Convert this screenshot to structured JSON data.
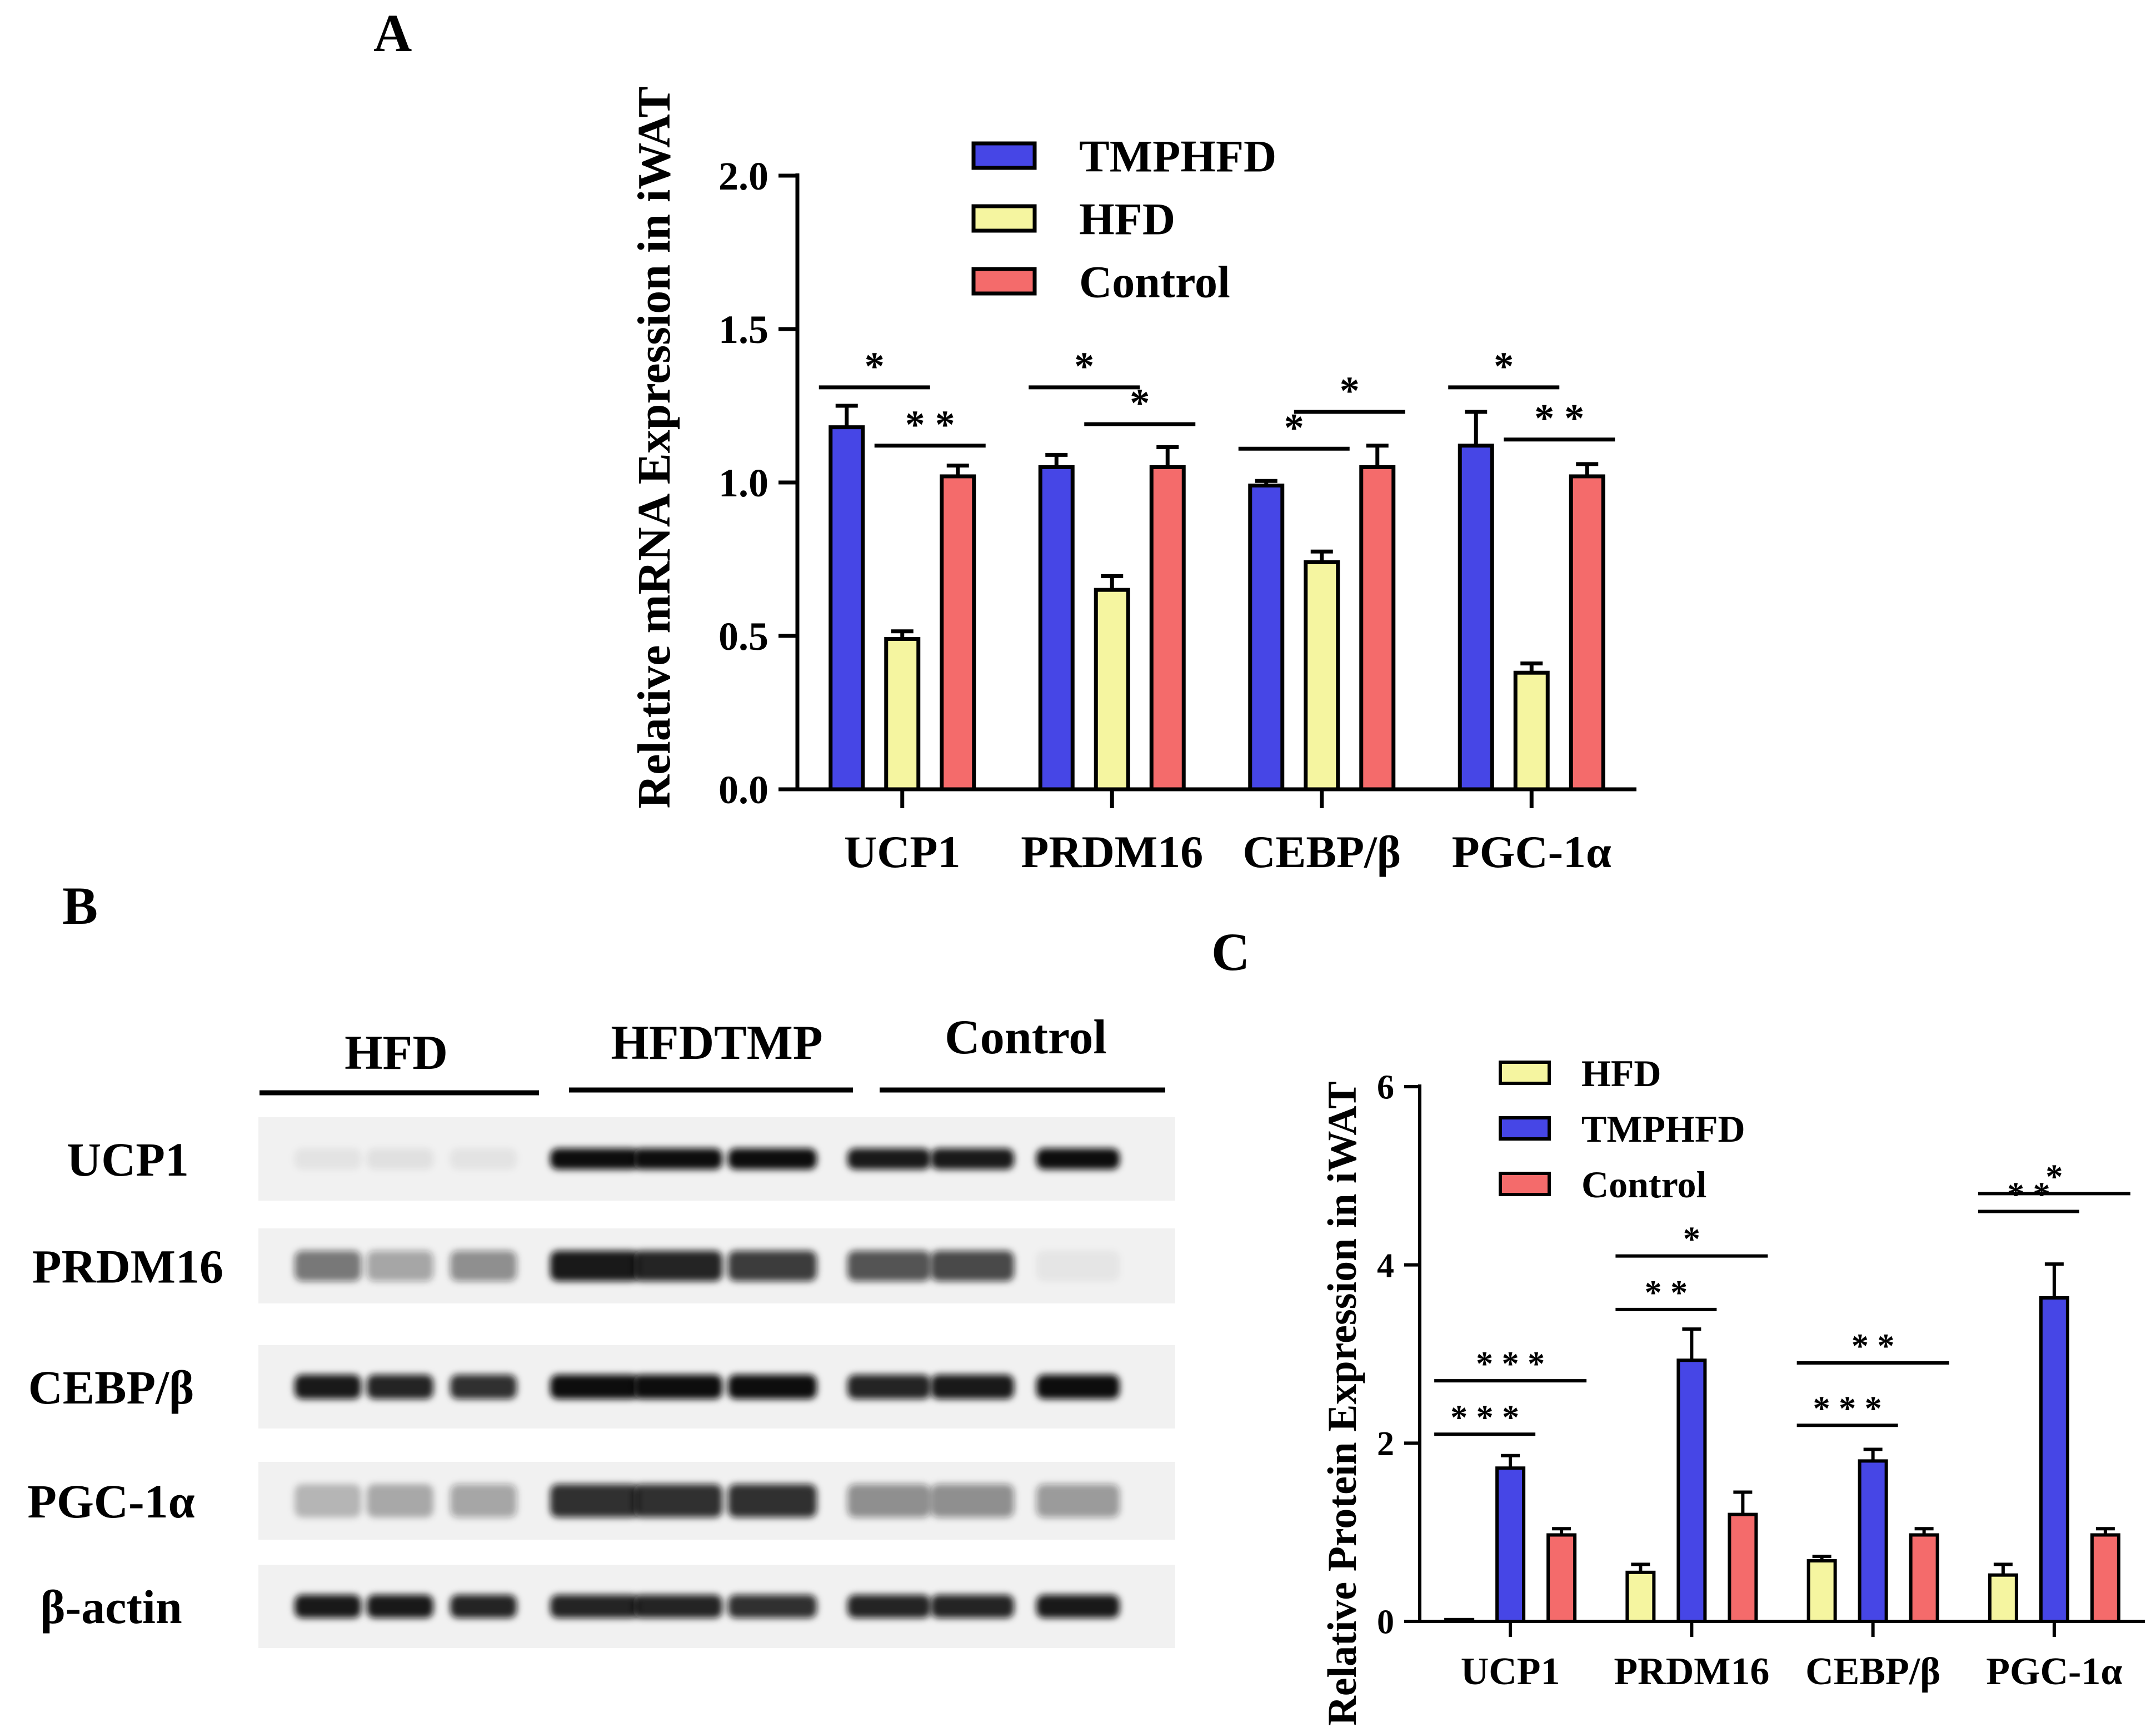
{
  "colors": {
    "TMPHFD": "#4646e6",
    "HFD": "#f5f5a0",
    "Control": "#f46b6b",
    "axis": "#000000"
  },
  "panel_b": {
    "label": "B",
    "groups": [
      "HFD",
      "HFDTMP",
      "Control"
    ],
    "proteins": [
      "UCP1",
      "PRDM16",
      "CEBP/β",
      "PGC-1α",
      "β-actin"
    ],
    "band_intensity": [
      [
        0.06,
        0.07,
        0.06,
        1.0,
        1.0,
        1.0,
        0.95,
        0.95,
        1.0
      ],
      [
        0.55,
        0.35,
        0.45,
        0.95,
        0.9,
        0.8,
        0.7,
        0.75,
        0.05
      ],
      [
        0.95,
        0.9,
        0.85,
        1.0,
        1.0,
        1.0,
        0.9,
        0.95,
        1.0
      ],
      [
        0.25,
        0.3,
        0.35,
        0.85,
        0.85,
        0.85,
        0.45,
        0.45,
        0.4
      ],
      [
        0.95,
        0.95,
        0.9,
        0.9,
        0.9,
        0.85,
        0.9,
        0.9,
        0.95
      ]
    ]
  },
  "chart_data": [
    {
      "panel": "A",
      "type": "bar",
      "ylabel": "Relative mRNA Expression in iWAT",
      "ylim": [
        0,
        2.0
      ],
      "yticks": [
        "0.0",
        "0.5",
        "1.0",
        "1.5",
        "2.0"
      ],
      "ytick_values": [
        0,
        0.5,
        1.0,
        1.5,
        2.0
      ],
      "categories": [
        "UCP1",
        "PRDM16",
        "CEBP/β",
        "PGC-1α"
      ],
      "legend_position": "top",
      "series": [
        {
          "name": "TMPHFD",
          "values": [
            1.18,
            1.05,
            0.99,
            1.12
          ],
          "errors": [
            0.07,
            0.04,
            0.015,
            0.11
          ]
        },
        {
          "name": "HFD",
          "values": [
            0.49,
            0.65,
            0.74,
            0.38
          ],
          "errors": [
            0.025,
            0.045,
            0.035,
            0.03
          ]
        },
        {
          "name": "Control",
          "values": [
            1.02,
            1.05,
            1.05,
            1.02
          ],
          "errors": [
            0.035,
            0.065,
            0.07,
            0.04
          ]
        }
      ],
      "significance": [
        {
          "category": 0,
          "from": 0,
          "to": 1,
          "y": 1.31,
          "label": "*"
        },
        {
          "category": 0,
          "from": 1,
          "to": 2,
          "y": 1.12,
          "label": "* *"
        },
        {
          "category": 1,
          "from": 0,
          "to": 1,
          "y": 1.31,
          "label": "*"
        },
        {
          "category": 1,
          "from": 1,
          "to": 2,
          "y": 1.19,
          "label": "*"
        },
        {
          "category": 2,
          "from": 0,
          "to": 1,
          "y": 1.11,
          "label": "*"
        },
        {
          "category": 2,
          "from": 1,
          "to": 2,
          "y": 1.23,
          "label": "*"
        },
        {
          "category": 3,
          "from": 0,
          "to": 1,
          "y": 1.31,
          "label": "*"
        },
        {
          "category": 3,
          "from": 1,
          "to": 2,
          "y": 1.14,
          "label": "* *"
        }
      ]
    },
    {
      "panel": "C",
      "type": "bar",
      "ylabel": "Relative Protein Expression in iWAT",
      "ylim": [
        0,
        6
      ],
      "yticks": [
        "0",
        "2",
        "4",
        "6"
      ],
      "ytick_values": [
        0,
        2,
        4,
        6
      ],
      "categories": [
        "UCP1",
        "PRDM16",
        "CEBP/β",
        "PGC-1α"
      ],
      "legend_position": "top-left",
      "series": [
        {
          "name": "HFD",
          "values": [
            0.02,
            0.55,
            0.68,
            0.52
          ],
          "errors": [
            0.0,
            0.09,
            0.05,
            0.12
          ]
        },
        {
          "name": "TMPHFD",
          "values": [
            1.72,
            2.93,
            1.8,
            3.63
          ],
          "errors": [
            0.14,
            0.35,
            0.13,
            0.38
          ]
        },
        {
          "name": "Control",
          "values": [
            0.97,
            1.2,
            0.97,
            0.97
          ],
          "errors": [
            0.07,
            0.25,
            0.07,
            0.07
          ]
        }
      ],
      "significance": [
        {
          "category": 0,
          "from": 0,
          "to": 1,
          "y": 2.1,
          "label": "* * *"
        },
        {
          "category": 0,
          "from": 0,
          "to": 2,
          "y": 2.7,
          "label": "* * *"
        },
        {
          "category": 1,
          "from": 0,
          "to": 1,
          "y": 3.5,
          "label": "* *"
        },
        {
          "category": 1,
          "from": 0,
          "to": 2,
          "y": 4.1,
          "label": "*"
        },
        {
          "category": 2,
          "from": 0,
          "to": 1,
          "y": 2.2,
          "label": "* * *"
        },
        {
          "category": 2,
          "from": 0,
          "to": 2,
          "y": 2.9,
          "label": "* *"
        },
        {
          "category": 3,
          "from": 0,
          "to": 1,
          "y": 4.6,
          "label": "* *"
        },
        {
          "category": 3,
          "from": 0,
          "to": 2,
          "y": 4.8,
          "label": "*"
        }
      ]
    }
  ]
}
